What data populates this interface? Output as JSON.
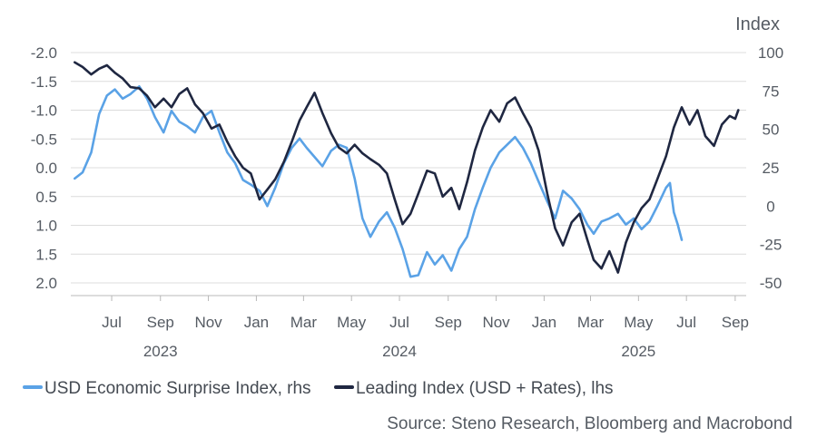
{
  "colors": {
    "surprise": "#5aa2e6",
    "leading": "#1f2741",
    "grid": "#dcdcdc",
    "axis": "#555b63"
  },
  "texts": {
    "right_unit": "Index",
    "source": "Source: Steno Research, Bloomberg and Macrobond"
  },
  "chart_data": {
    "type": "line",
    "x_axis": {
      "start": "2023-05-10",
      "end": "2025-09-15",
      "tick_labels": [
        {
          "date": "2023-07-01",
          "label": "Jul"
        },
        {
          "date": "2023-09-01",
          "label": "Sep"
        },
        {
          "date": "2023-11-01",
          "label": "Nov"
        },
        {
          "date": "2024-01-01",
          "label": "Jan"
        },
        {
          "date": "2024-03-01",
          "label": "Mar"
        },
        {
          "date": "2024-05-01",
          "label": "May"
        },
        {
          "date": "2024-07-01",
          "label": "Jul"
        },
        {
          "date": "2024-09-01",
          "label": "Sep"
        },
        {
          "date": "2024-11-01",
          "label": "Nov"
        },
        {
          "date": "2025-01-01",
          "label": "Jan"
        },
        {
          "date": "2025-03-01",
          "label": "Mar"
        },
        {
          "date": "2025-05-01",
          "label": "May"
        },
        {
          "date": "2025-07-01",
          "label": "Jul"
        },
        {
          "date": "2025-09-01",
          "label": "Sep"
        }
      ],
      "year_labels": [
        {
          "date": "2023-09-01",
          "label": "2023"
        },
        {
          "date": "2024-07-01",
          "label": "2024"
        },
        {
          "date": "2025-05-01",
          "label": "2025"
        }
      ]
    },
    "left_axis": {
      "min": -2.0,
      "max": 2.0,
      "inverted": true,
      "ticks": [
        -2.0,
        -1.5,
        -1.0,
        -0.5,
        0.0,
        0.5,
        1.0,
        1.5,
        2.0
      ],
      "labels": [
        "-2.0",
        "-1.5",
        "-1.0",
        "-0.5",
        "0.0",
        "0.5",
        "1.0",
        "1.5",
        "2.0"
      ]
    },
    "right_axis": {
      "min": -50,
      "max": 100,
      "ticks": [
        100,
        75,
        50,
        25,
        0,
        -25,
        -50
      ],
      "labels": [
        "100",
        "75",
        "50",
        "25",
        "0",
        "-25",
        "-50"
      ],
      "title": "Index"
    },
    "grid": true,
    "legend_position": "bottom",
    "series": [
      {
        "name": "USD Economic Surprise Index, rhs",
        "axis": "right",
        "color": "#5aa2e6",
        "points": [
          [
            "2023-05-15",
            18
          ],
          [
            "2023-05-25",
            22
          ],
          [
            "2023-06-05",
            35
          ],
          [
            "2023-06-15",
            60
          ],
          [
            "2023-06-25",
            72
          ],
          [
            "2023-07-05",
            76
          ],
          [
            "2023-07-15",
            70
          ],
          [
            "2023-07-25",
            73
          ],
          [
            "2023-08-05",
            78
          ],
          [
            "2023-08-15",
            70
          ],
          [
            "2023-08-25",
            58
          ],
          [
            "2023-09-05",
            48
          ],
          [
            "2023-09-15",
            62
          ],
          [
            "2023-09-25",
            55
          ],
          [
            "2023-10-05",
            52
          ],
          [
            "2023-10-15",
            48
          ],
          [
            "2023-10-25",
            58
          ],
          [
            "2023-11-05",
            62
          ],
          [
            "2023-11-15",
            48
          ],
          [
            "2023-11-25",
            35
          ],
          [
            "2023-12-05",
            28
          ],
          [
            "2023-12-15",
            17
          ],
          [
            "2023-12-25",
            14
          ],
          [
            "2024-01-05",
            10
          ],
          [
            "2024-01-15",
            0
          ],
          [
            "2024-01-25",
            12
          ],
          [
            "2024-02-05",
            28
          ],
          [
            "2024-02-15",
            38
          ],
          [
            "2024-02-25",
            44
          ],
          [
            "2024-03-05",
            38
          ],
          [
            "2024-03-15",
            32
          ],
          [
            "2024-03-25",
            26
          ],
          [
            "2024-04-05",
            36
          ],
          [
            "2024-04-15",
            40
          ],
          [
            "2024-04-25",
            38
          ],
          [
            "2024-05-05",
            18
          ],
          [
            "2024-05-15",
            -8
          ],
          [
            "2024-05-25",
            -20
          ],
          [
            "2024-06-05",
            -10
          ],
          [
            "2024-06-15",
            -4
          ],
          [
            "2024-06-25",
            -14
          ],
          [
            "2024-07-05",
            -28
          ],
          [
            "2024-07-15",
            -46
          ],
          [
            "2024-07-25",
            -45
          ],
          [
            "2024-08-05",
            -30
          ],
          [
            "2024-08-15",
            -38
          ],
          [
            "2024-08-25",
            -32
          ],
          [
            "2024-09-05",
            -42
          ],
          [
            "2024-09-15",
            -28
          ],
          [
            "2024-09-25",
            -20
          ],
          [
            "2024-10-05",
            -2
          ],
          [
            "2024-10-15",
            12
          ],
          [
            "2024-10-25",
            25
          ],
          [
            "2024-11-05",
            35
          ],
          [
            "2024-11-15",
            40
          ],
          [
            "2024-11-25",
            45
          ],
          [
            "2024-12-05",
            38
          ],
          [
            "2024-12-15",
            28
          ],
          [
            "2024-12-25",
            16
          ],
          [
            "2025-01-05",
            3
          ],
          [
            "2025-01-15",
            -8
          ],
          [
            "2025-01-25",
            10
          ],
          [
            "2025-02-05",
            5
          ],
          [
            "2025-02-15",
            -2
          ],
          [
            "2025-02-25",
            -12
          ],
          [
            "2025-03-05",
            -18
          ],
          [
            "2025-03-15",
            -10
          ],
          [
            "2025-03-25",
            -8
          ],
          [
            "2025-04-05",
            -5
          ],
          [
            "2025-04-15",
            -12
          ],
          [
            "2025-04-25",
            -8
          ],
          [
            "2025-05-05",
            -15
          ],
          [
            "2025-05-15",
            -10
          ],
          [
            "2025-05-25",
            0
          ],
          [
            "2025-06-05",
            12
          ],
          [
            "2025-06-10",
            15
          ],
          [
            "2025-06-15",
            -4
          ],
          [
            "2025-06-20",
            -12
          ],
          [
            "2025-06-25",
            -22
          ]
        ]
      },
      {
        "name": "Leading Index (USD + Rates), lhs",
        "axis": "left",
        "color": "#1f2741",
        "points": [
          [
            "2023-05-15",
            -1.83
          ],
          [
            "2023-05-25",
            -1.75
          ],
          [
            "2023-06-05",
            -1.62
          ],
          [
            "2023-06-15",
            -1.72
          ],
          [
            "2023-06-25",
            -1.78
          ],
          [
            "2023-07-05",
            -1.65
          ],
          [
            "2023-07-15",
            -1.55
          ],
          [
            "2023-07-25",
            -1.4
          ],
          [
            "2023-08-05",
            -1.38
          ],
          [
            "2023-08-15",
            -1.25
          ],
          [
            "2023-08-25",
            -1.05
          ],
          [
            "2023-09-05",
            -1.2
          ],
          [
            "2023-09-15",
            -1.05
          ],
          [
            "2023-09-25",
            -1.28
          ],
          [
            "2023-10-05",
            -1.38
          ],
          [
            "2023-10-15",
            -1.1
          ],
          [
            "2023-10-25",
            -0.95
          ],
          [
            "2023-11-05",
            -0.68
          ],
          [
            "2023-11-15",
            -0.75
          ],
          [
            "2023-11-25",
            -0.45
          ],
          [
            "2023-12-05",
            -0.2
          ],
          [
            "2023-12-15",
            0.0
          ],
          [
            "2023-12-25",
            0.1
          ],
          [
            "2024-01-05",
            0.55
          ],
          [
            "2024-01-15",
            0.38
          ],
          [
            "2024-01-25",
            0.2
          ],
          [
            "2024-02-05",
            -0.1
          ],
          [
            "2024-02-15",
            -0.45
          ],
          [
            "2024-02-25",
            -0.82
          ],
          [
            "2024-03-05",
            -1.05
          ],
          [
            "2024-03-15",
            -1.3
          ],
          [
            "2024-03-25",
            -0.95
          ],
          [
            "2024-04-05",
            -0.6
          ],
          [
            "2024-04-15",
            -0.35
          ],
          [
            "2024-04-25",
            -0.25
          ],
          [
            "2024-05-05",
            -0.4
          ],
          [
            "2024-05-15",
            -0.25
          ],
          [
            "2024-05-25",
            -0.15
          ],
          [
            "2024-06-05",
            -0.05
          ],
          [
            "2024-06-15",
            0.1
          ],
          [
            "2024-06-25",
            0.55
          ],
          [
            "2024-07-05",
            0.98
          ],
          [
            "2024-07-15",
            0.8
          ],
          [
            "2024-07-25",
            0.45
          ],
          [
            "2024-08-05",
            0.05
          ],
          [
            "2024-08-15",
            0.1
          ],
          [
            "2024-08-25",
            0.5
          ],
          [
            "2024-09-05",
            0.35
          ],
          [
            "2024-09-15",
            0.72
          ],
          [
            "2024-09-25",
            0.25
          ],
          [
            "2024-10-05",
            -0.3
          ],
          [
            "2024-10-15",
            -0.7
          ],
          [
            "2024-10-25",
            -1.0
          ],
          [
            "2024-11-05",
            -0.8
          ],
          [
            "2024-11-15",
            -1.12
          ],
          [
            "2024-11-25",
            -1.22
          ],
          [
            "2024-12-05",
            -0.95
          ],
          [
            "2024-12-15",
            -0.7
          ],
          [
            "2024-12-25",
            -0.3
          ],
          [
            "2025-01-05",
            0.45
          ],
          [
            "2025-01-15",
            1.05
          ],
          [
            "2025-01-25",
            1.35
          ],
          [
            "2025-02-05",
            0.95
          ],
          [
            "2025-02-15",
            0.8
          ],
          [
            "2025-02-25",
            1.25
          ],
          [
            "2025-03-05",
            1.6
          ],
          [
            "2025-03-15",
            1.75
          ],
          [
            "2025-03-25",
            1.45
          ],
          [
            "2025-04-05",
            1.82
          ],
          [
            "2025-04-15",
            1.3
          ],
          [
            "2025-04-25",
            0.95
          ],
          [
            "2025-05-05",
            0.7
          ],
          [
            "2025-05-15",
            0.55
          ],
          [
            "2025-05-25",
            0.2
          ],
          [
            "2025-06-05",
            -0.2
          ],
          [
            "2025-06-15",
            -0.7
          ],
          [
            "2025-06-25",
            -1.05
          ],
          [
            "2025-07-05",
            -0.75
          ],
          [
            "2025-07-15",
            -1.0
          ],
          [
            "2025-07-25",
            -0.55
          ],
          [
            "2025-08-05",
            -0.38
          ],
          [
            "2025-08-15",
            -0.75
          ],
          [
            "2025-08-25",
            -0.9
          ],
          [
            "2025-09-01",
            -0.85
          ],
          [
            "2025-09-05",
            -1.0
          ]
        ]
      }
    ]
  }
}
